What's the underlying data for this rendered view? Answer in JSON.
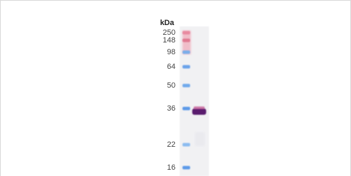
{
  "gel": {
    "unit_label": "kDa",
    "markers": [
      "250",
      "148",
      "98",
      "64",
      "50",
      "36",
      "22",
      "16"
    ]
  }
}
